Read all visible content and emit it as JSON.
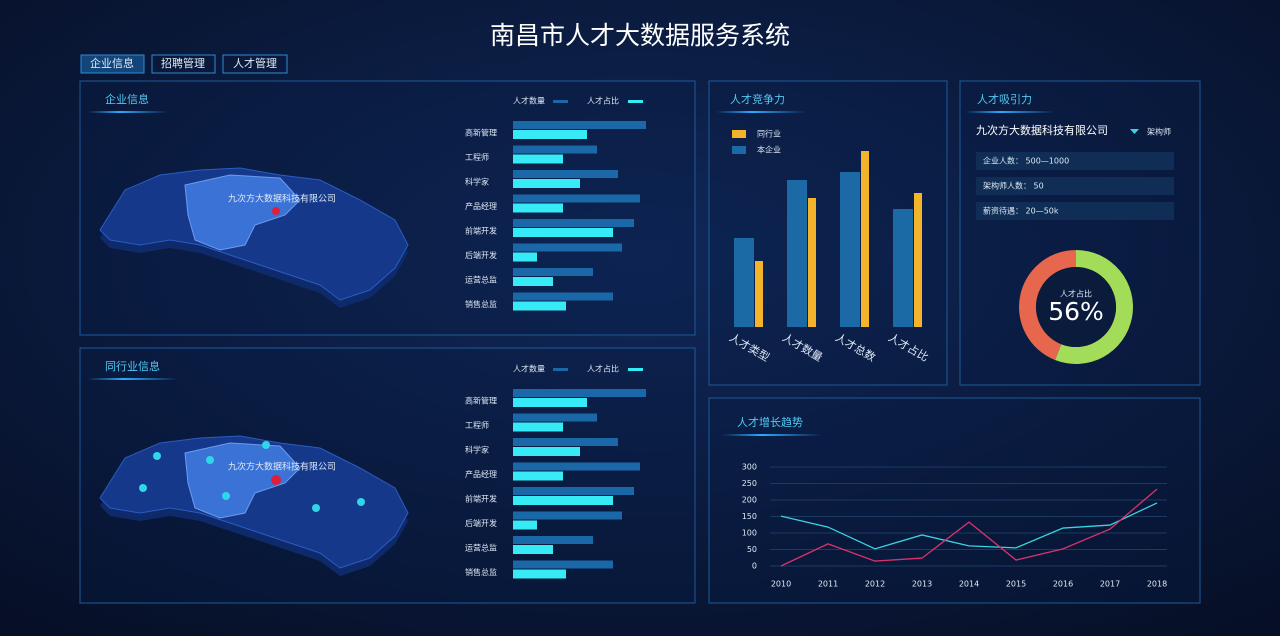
{
  "header": {
    "title": "南昌市人才大数据服务系统",
    "tabs": [
      "企业信息",
      "招聘管理",
      "人才管理"
    ]
  },
  "panels": {
    "enterprise": {
      "title": "企业信息",
      "map_label": "九次方大数据科技有限公司"
    },
    "peer": {
      "title": "同行业信息",
      "map_label": "九次方大数据科技有限公司"
    },
    "competition": {
      "title": "人才竞争力"
    },
    "attraction": {
      "title": "人才吸引力",
      "company": "九次方大数据科技有限公司",
      "selector": "架构师",
      "rows": [
        "企业人数： 500—1000",
        "架构师人数： 50",
        "薪资待遇： 20—50k"
      ]
    },
    "trend": {
      "title": "人才增长趋势"
    }
  },
  "chart_data": [
    {
      "type": "bar",
      "orientation": "horizontal",
      "categories": [
        "高新管理",
        "工程师",
        "科学家",
        "产品经理",
        "前端开发",
        "后端开发",
        "运营总监",
        "销售总监"
      ],
      "series": [
        {
          "name": "人才数量",
          "color": "#1a68a8",
          "values": [
            133,
            84,
            105,
            127,
            121,
            109,
            80,
            100
          ]
        },
        {
          "name": "人才占比",
          "color": "#36ebf5",
          "values": [
            74,
            50,
            67,
            50,
            100,
            24,
            40,
            53
          ]
        }
      ]
    },
    {
      "type": "bar",
      "orientation": "horizontal",
      "categories": [
        "高新管理",
        "工程师",
        "科学家",
        "产品经理",
        "前端开发",
        "后端开发",
        "运营总监",
        "销售总监"
      ],
      "series": [
        {
          "name": "人才数量",
          "color": "#1a68a8",
          "values": [
            133,
            84,
            105,
            127,
            121,
            109,
            80,
            100
          ]
        },
        {
          "name": "人才占比",
          "color": "#36ebf5",
          "values": [
            74,
            50,
            67,
            50,
            100,
            24,
            40,
            53
          ]
        }
      ]
    },
    {
      "type": "bar",
      "orientation": "vertical",
      "categories": [
        "人才类型",
        "人才数量",
        "人才总数",
        "人才占比"
      ],
      "series": [
        {
          "name": "同行业",
          "color": "#f3b42c",
          "values": [
            66,
            129,
            176,
            134
          ]
        },
        {
          "name": "本企业",
          "color": "#1b6aa6",
          "values": [
            89,
            147,
            155,
            118
          ]
        }
      ]
    },
    {
      "type": "pie",
      "center_label": "人才占比",
      "values": [
        56,
        44
      ],
      "value_labels": [
        "56%",
        null
      ],
      "colors": [
        "#a3dc59",
        "#e6664e"
      ]
    },
    {
      "type": "line",
      "categories": [
        "2010",
        "2011",
        "2012",
        "2013",
        "2014",
        "2015",
        "2016",
        "2017",
        "2018"
      ],
      "ylim": [
        0,
        300
      ],
      "yticks": [
        0,
        50,
        100,
        150,
        200,
        250,
        300
      ],
      "grid": true,
      "series": [
        {
          "color": "#3bd3df",
          "values": [
            151,
            118,
            52,
            94,
            61,
            55,
            115,
            124,
            191
          ]
        },
        {
          "color": "#d8336b",
          "values": [
            0,
            67,
            15,
            24,
            133,
            18,
            52,
            112,
            233
          ]
        }
      ]
    }
  ]
}
